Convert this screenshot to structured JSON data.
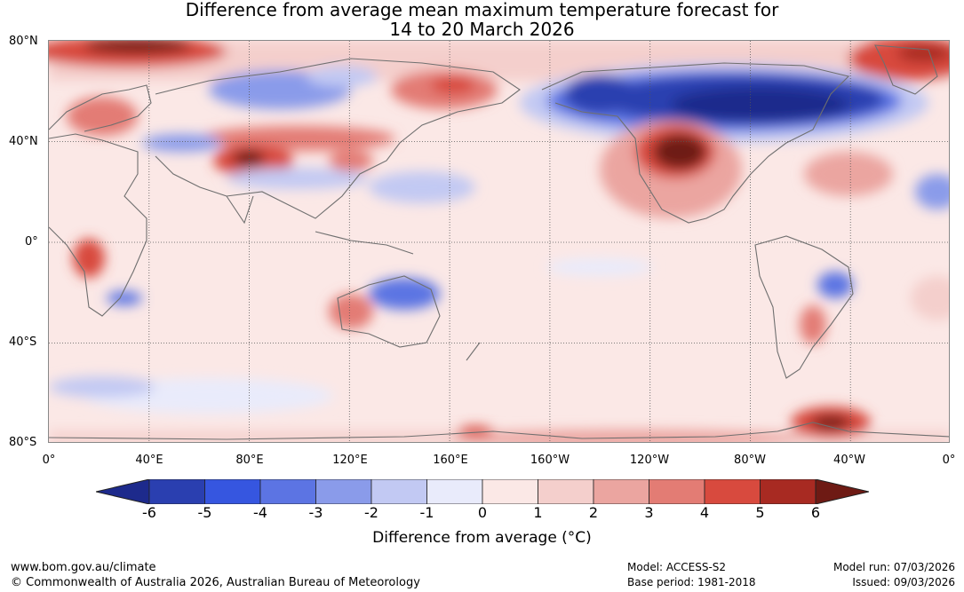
{
  "title": {
    "line1": "Difference from average mean maximum temperature forecast for",
    "line2": "14 to 20 March 2026"
  },
  "lat_labels": [
    "80°N",
    "40°N",
    "0°",
    "40°S",
    "80°S"
  ],
  "lon_labels": [
    "0°",
    "40°E",
    "80°E",
    "120°E",
    "160°E",
    "160°W",
    "120°W",
    "80°W",
    "40°W",
    "0°"
  ],
  "colorbar": {
    "colors": [
      "#1d2a8c",
      "#2a3fb0",
      "#3656e0",
      "#5c74e3",
      "#8a9bea",
      "#c2c9f3",
      "#e9ebfb",
      "#fbe8e6",
      "#f4cfcc",
      "#eba5a0",
      "#e37c74",
      "#d84a3e",
      "#a82a22",
      "#6e1a14"
    ],
    "ticks": [
      "-6",
      "-5",
      "-4",
      "-3",
      "-2",
      "-1",
      "0",
      "1",
      "2",
      "3",
      "4",
      "5",
      "6"
    ],
    "label": "Difference from average (°C)"
  },
  "footer": {
    "url": "www.bom.gov.au/climate",
    "copyright": "© Commonwealth of Australia 2026, Australian Bureau of Meteorology",
    "model": "Model: ACCESS-S2",
    "base_period": "Base period: 1981-2018",
    "model_run": "Model run: 07/03/2026",
    "issued": "Issued: 09/03/2026"
  }
}
